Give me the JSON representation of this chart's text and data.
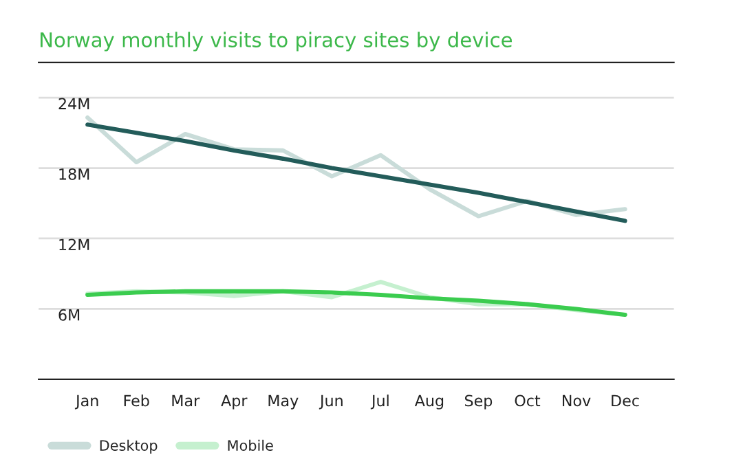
{
  "chart_data": {
    "type": "line",
    "title": "Norway monthly visits to piracy sites by device",
    "categories": [
      "Jan",
      "Feb",
      "Mar",
      "Apr",
      "May",
      "Jun",
      "Jul",
      "Aug",
      "Sep",
      "Oct",
      "Nov",
      "Dec"
    ],
    "series": [
      {
        "name": "Desktop",
        "color": "#c9dcd9",
        "values": [
          22.3,
          18.5,
          20.9,
          19.6,
          19.5,
          17.3,
          19.1,
          16.2,
          13.9,
          15.2,
          14.0,
          14.5
        ]
      },
      {
        "name": "Mobile",
        "color": "#c5f0cf",
        "values": [
          7.3,
          7.5,
          7.4,
          7.1,
          7.5,
          7.0,
          8.3,
          7.0,
          6.4,
          6.4,
          5.9,
          5.5
        ]
      },
      {
        "color": "#235c5a",
        "values": [
          21.7,
          21.0,
          20.3,
          19.5,
          18.8,
          18.0,
          17.3,
          16.6,
          15.9,
          15.1,
          14.3,
          13.5
        ]
      },
      {
        "color": "#3bcc4f",
        "values": [
          7.2,
          7.4,
          7.5,
          7.5,
          7.5,
          7.4,
          7.2,
          6.9,
          6.7,
          6.4,
          6.0,
          5.5
        ]
      }
    ],
    "ylim": [
      0,
      27
    ],
    "yticks": [
      {
        "value": 6,
        "label": "6M"
      },
      {
        "value": 12,
        "label": "12M"
      },
      {
        "value": 18,
        "label": "18M"
      },
      {
        "value": 24,
        "label": "24M"
      }
    ],
    "grid": "y",
    "legend": "bottom left",
    "line_style": "solid",
    "marker": "none"
  }
}
